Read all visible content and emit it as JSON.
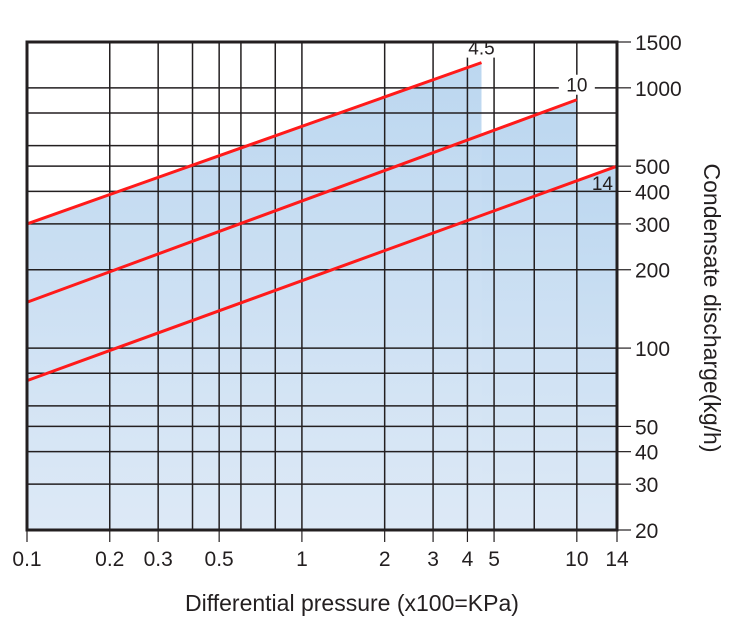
{
  "chart_data": {
    "type": "line",
    "xlabel": "Differential pressure (x100=KPa)",
    "ylabel": "Condensate discharge(kg/h)",
    "xscale": "log",
    "yscale": "log",
    "xlim": [
      0.1,
      14
    ],
    "ylim": [
      20,
      1500
    ],
    "grid": true,
    "x_ticks": [
      0.1,
      0.2,
      0.3,
      0.5,
      1,
      2,
      3,
      4,
      5,
      10,
      14
    ],
    "x_tick_labels": [
      "0.1",
      "0.2",
      "0.3",
      "0.5",
      "1",
      "2",
      "3",
      "4",
      "5",
      "10",
      "14"
    ],
    "y_ticks": [
      20,
      30,
      40,
      50,
      100,
      200,
      300,
      400,
      500,
      1000,
      1500
    ],
    "y_tick_labels": [
      "20",
      "30",
      "40",
      "50",
      "100",
      "200",
      "300",
      "400",
      "500",
      "1000",
      "1500"
    ],
    "x_gridlines": [
      0.2,
      0.3,
      0.4,
      0.5,
      0.6,
      0.8,
      1,
      2,
      3,
      4,
      5,
      7,
      10
    ],
    "y_gridlines": [
      30,
      40,
      50,
      60,
      80,
      100,
      200,
      300,
      400,
      500,
      600,
      800,
      1000
    ],
    "series": [
      {
        "name": "4.5",
        "x": [
          0.1,
          4.5
        ],
        "y": [
          300,
          1250
        ]
      },
      {
        "name": "10",
        "x": [
          0.1,
          10
        ],
        "y": [
          150,
          900
        ]
      },
      {
        "name": "14",
        "x": [
          0.1,
          14
        ],
        "y": [
          75,
          500
        ]
      }
    ],
    "colors": {
      "line": "#ff1a1a",
      "fill_top": "#bcd7f0",
      "fill_bottom": "#dde9f6",
      "grid": "#231f20"
    }
  }
}
